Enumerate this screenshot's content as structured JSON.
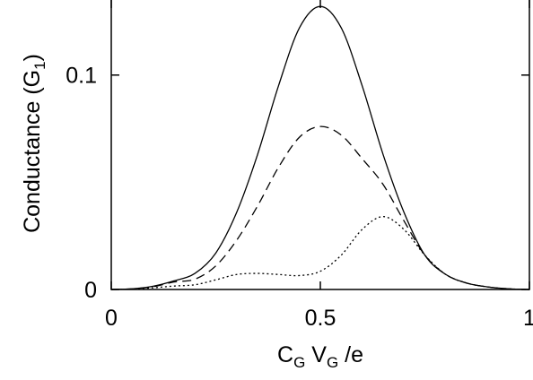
{
  "chart_data": {
    "type": "line",
    "xlabel": {
      "p1": "C",
      "s1": "G",
      "p2": " V",
      "s2": "G",
      "p3": " /e"
    },
    "ylabel": {
      "p1": "Conductance (G",
      "s1": "1",
      "p2": ")"
    },
    "xlim": [
      0,
      1
    ],
    "ylim": [
      0,
      0.135
    ],
    "xticks": [
      {
        "value": 0,
        "label": "0"
      },
      {
        "value": 0.5,
        "label": "0.5"
      },
      {
        "value": 1,
        "label": "1"
      }
    ],
    "yticks": [
      {
        "value": 0,
        "label": "0"
      },
      {
        "value": 0.1,
        "label": "0.1"
      }
    ],
    "grid": false,
    "legend": "none",
    "series": [
      {
        "style": "solid",
        "x": [
          0,
          0.05,
          0.1,
          0.15,
          0.2,
          0.25,
          0.3,
          0.35,
          0.4,
          0.45,
          0.5,
          0.55,
          0.6,
          0.65,
          0.7,
          0.75,
          0.8,
          0.85,
          0.9,
          0.95,
          1
        ],
        "y": [
          0,
          0.0003,
          0.0015,
          0.004,
          0.0075,
          0.017,
          0.036,
          0.063,
          0.095,
          0.122,
          0.132,
          0.122,
          0.095,
          0.063,
          0.036,
          0.016,
          0.007,
          0.003,
          0.0012,
          0.0003,
          0
        ]
      },
      {
        "style": "dashed",
        "x": [
          0,
          0.05,
          0.1,
          0.15,
          0.2,
          0.25,
          0.3,
          0.35,
          0.4,
          0.45,
          0.5,
          0.55,
          0.6,
          0.65,
          0.7,
          0.75,
          0.8,
          0.85,
          0.9,
          0.95,
          1
        ],
        "y": [
          0,
          0.0003,
          0.0013,
          0.0035,
          0.0048,
          0.011,
          0.023,
          0.039,
          0.057,
          0.071,
          0.076,
          0.072,
          0.061,
          0.049,
          0.032,
          0.016,
          0.007,
          0.003,
          0.0012,
          0.0003,
          0
        ]
      },
      {
        "style": "dotted",
        "x": [
          0,
          0.05,
          0.1,
          0.15,
          0.2,
          0.25,
          0.3,
          0.35,
          0.4,
          0.45,
          0.5,
          0.55,
          0.6,
          0.65,
          0.7,
          0.75,
          0.8,
          0.85,
          0.9,
          0.95,
          1
        ],
        "y": [
          0,
          0.0002,
          0.0008,
          0.0016,
          0.0022,
          0.0045,
          0.007,
          0.0075,
          0.007,
          0.0065,
          0.0085,
          0.016,
          0.028,
          0.034,
          0.028,
          0.016,
          0.007,
          0.003,
          0.0012,
          0.0003,
          0
        ]
      }
    ]
  }
}
